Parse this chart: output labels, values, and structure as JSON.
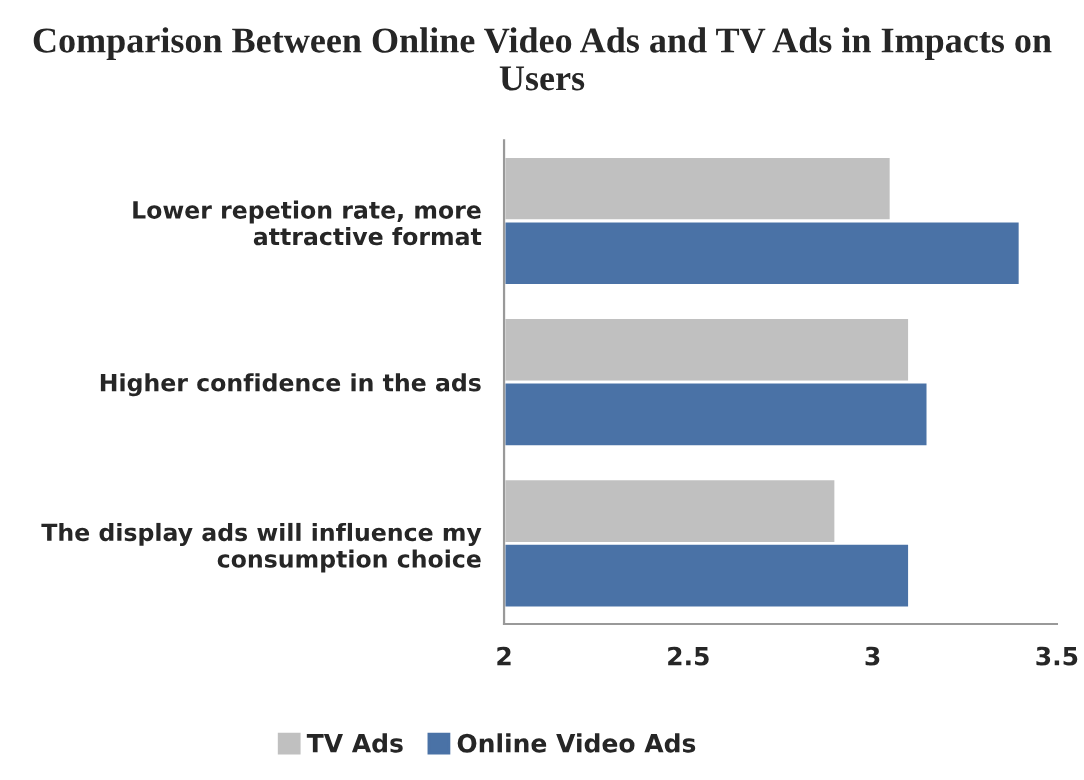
{
  "chart_data": {
    "type": "bar",
    "orientation": "horizontal",
    "title": "Comparison Between Online Video Ads and TV Ads in Impacts on Users",
    "categories": [
      "Lower repetion rate, more attractive format",
      "Higher confidence in the ads",
      "The display ads will influence my consumption choice"
    ],
    "series": [
      {
        "name": "TV Ads",
        "color": "#c0c0c0",
        "values": [
          3.05,
          3.1,
          2.9
        ]
      },
      {
        "name": "Online Video Ads",
        "color": "#4a72a6",
        "values": [
          3.4,
          3.15,
          3.1
        ]
      }
    ],
    "xlim": [
      2,
      3.5
    ],
    "xticks": [
      2,
      2.5,
      3,
      3.5
    ],
    "grid": false,
    "legend": "bottom"
  }
}
